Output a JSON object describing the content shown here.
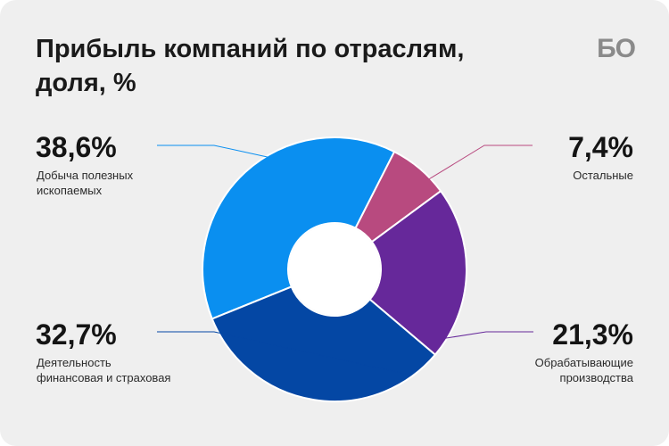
{
  "title_line1": "Прибыль компаний по отраслям,",
  "title_line2": "доля, %",
  "logo": "БО",
  "chart_data": {
    "type": "pie",
    "title": "Прибыль компаний по отраслям, доля, %",
    "slices": [
      {
        "label": "Добыча полезных ископаемых",
        "value": 38.6,
        "display": "38,6%",
        "color": "#0a8ff0",
        "label_lines": [
          "Добыча полезных",
          "ископаемых"
        ]
      },
      {
        "label": "Остальные",
        "value": 7.4,
        "display": "7,4%",
        "color": "#b84a7f",
        "label_lines": [
          "Остальные"
        ]
      },
      {
        "label": "Обрабатывающие производства",
        "value": 21.3,
        "display": "21,3%",
        "color": "#66289a",
        "label_lines": [
          "Обрабатывающие",
          "производства"
        ]
      },
      {
        "label": "Деятельность финансовая и страховая",
        "value": 32.7,
        "display": "32,7%",
        "color": "#0447a4",
        "label_lines": [
          "Деятельность",
          "финансовая и страховая"
        ]
      }
    ],
    "donut": true,
    "legend": "callouts"
  }
}
